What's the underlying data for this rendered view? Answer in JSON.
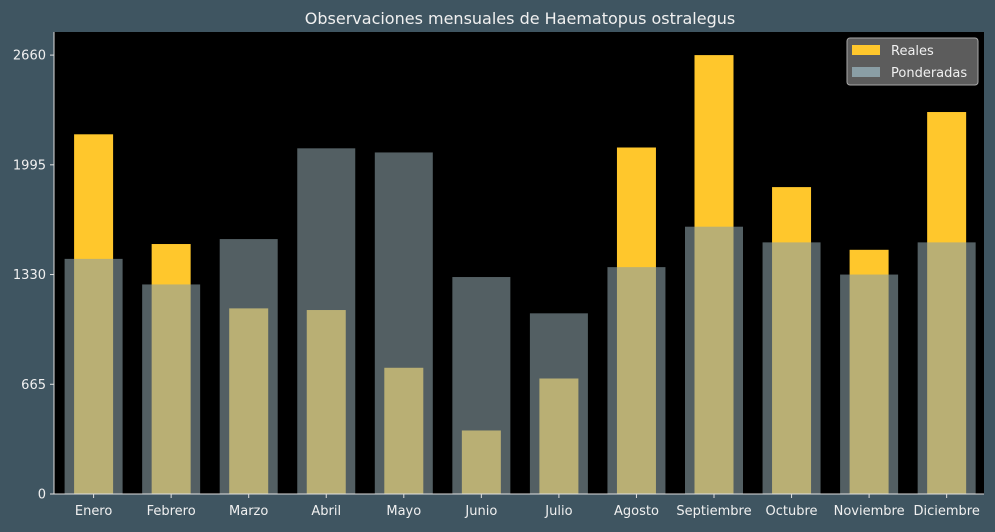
{
  "chart_data": {
    "type": "bar",
    "title": "Observaciones mensuales de Haematopus ostralegus",
    "xlabel": "",
    "ylabel": "",
    "categories": [
      "Enero",
      "Febrero",
      "Marzo",
      "Abril",
      "Mayo",
      "Junio",
      "Julio",
      "Agosto",
      "Septiembre",
      "Octubre",
      "Noviembre",
      "Diciembre"
    ],
    "ylim": [
      0,
      2800
    ],
    "yticks": [
      0,
      665,
      1330,
      1995,
      2660
    ],
    "series": [
      {
        "name": "Ponderadas",
        "color": "#8a9ea5",
        "values": [
          1425,
          1270,
          1545,
          2095,
          2070,
          1315,
          1095,
          1375,
          1620,
          1525,
          1330,
          1525
        ]
      },
      {
        "name": "Reales",
        "color": "#ffc72c",
        "values": [
          2180,
          1515,
          1125,
          1115,
          765,
          385,
          700,
          2100,
          2660,
          1860,
          1480,
          2315
        ]
      }
    ],
    "legend": {
      "position": "top-right",
      "entries": [
        "Reales",
        "Ponderadas"
      ]
    },
    "grid": false,
    "colors": {
      "background": "#3f5561",
      "plot_area": "#000000",
      "text": "#f0f0f0"
    }
  }
}
